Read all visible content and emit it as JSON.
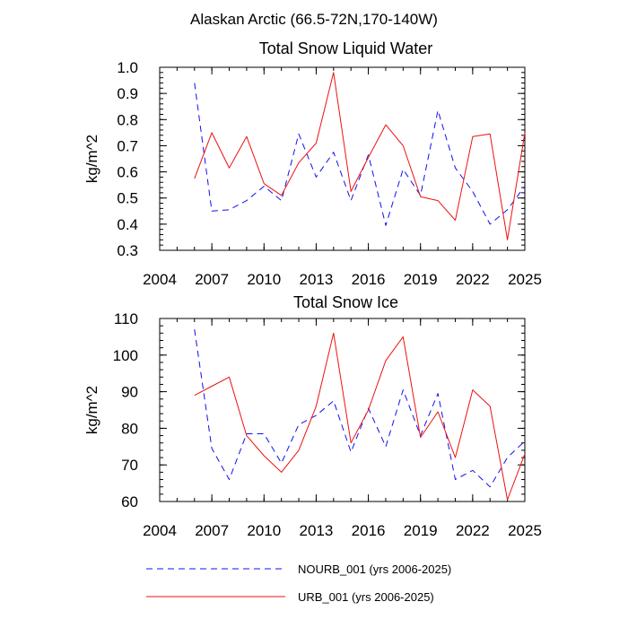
{
  "figure_title": "Alaskan Arctic (66.5-72N,170-140W)",
  "legend": {
    "items": [
      {
        "label": "NOURB_001 (yrs 2006-2025)",
        "color": "#1010ee",
        "style": "dashed"
      },
      {
        "label": "URB_001 (yrs 2006-2025)",
        "color": "#ee1010",
        "style": "solid"
      }
    ]
  },
  "chart_data": [
    {
      "type": "line",
      "title": "Total Snow Liquid Water",
      "xlabel": "",
      "ylabel": "kg/m^2",
      "xlim": [
        2004,
        2025
      ],
      "ylim": [
        0.3,
        1.0
      ],
      "xticks": [
        2004,
        2007,
        2010,
        2013,
        2016,
        2019,
        2022,
        2025
      ],
      "xtick_labels": [
        "2004",
        "2007",
        "2010",
        "2013",
        "2016",
        "2019",
        "2022",
        "2025"
      ],
      "yticks": [
        0.3,
        0.4,
        0.5,
        0.6,
        0.7,
        0.8,
        0.9,
        1.0
      ],
      "ytick_labels": [
        "0.3",
        "0.4",
        "0.5",
        "0.6",
        "0.7",
        "0.8",
        "0.9",
        "1.0"
      ],
      "x": [
        2006,
        2007,
        2008,
        2009,
        2010,
        2011,
        2012,
        2013,
        2014,
        2015,
        2016,
        2017,
        2018,
        2019,
        2020,
        2021,
        2022,
        2023,
        2024,
        2025
      ],
      "series": [
        {
          "name": "NOURB_001 (yrs 2006-2025)",
          "color": "#1010ee",
          "style": "dashed",
          "values": [
            0.94,
            0.45,
            0.455,
            0.49,
            0.545,
            0.49,
            0.745,
            0.58,
            0.675,
            0.49,
            0.665,
            0.395,
            0.61,
            0.51,
            0.835,
            0.615,
            0.525,
            0.4,
            0.455,
            0.545
          ]
        },
        {
          "name": "URB_001 (yrs 2006-2025)",
          "color": "#ee1010",
          "style": "solid",
          "values": [
            0.575,
            0.75,
            0.615,
            0.735,
            0.555,
            0.51,
            0.635,
            0.71,
            0.98,
            0.525,
            0.655,
            0.78,
            0.7,
            0.505,
            0.49,
            0.415,
            0.735,
            0.745,
            0.34,
            0.75
          ]
        }
      ]
    },
    {
      "type": "line",
      "title": "Total Snow Ice",
      "xlabel": "",
      "ylabel": "kg/m^2",
      "xlim": [
        2004,
        2025
      ],
      "ylim": [
        60,
        110
      ],
      "xticks": [
        2004,
        2007,
        2010,
        2013,
        2016,
        2019,
        2022,
        2025
      ],
      "xtick_labels": [
        "2004",
        "2007",
        "2010",
        "2013",
        "2016",
        "2019",
        "2022",
        "2025"
      ],
      "yticks": [
        60,
        70,
        80,
        90,
        100,
        110
      ],
      "ytick_labels": [
        "60",
        "70",
        "80",
        "90",
        "100",
        "110"
      ],
      "x": [
        2006,
        2007,
        2008,
        2009,
        2010,
        2011,
        2012,
        2013,
        2014,
        2015,
        2016,
        2017,
        2018,
        2019,
        2020,
        2021,
        2022,
        2023,
        2024,
        2025
      ],
      "series": [
        {
          "name": "NOURB_001 (yrs 2006-2025)",
          "color": "#1010ee",
          "style": "dashed",
          "values": [
            107,
            74.5,
            66,
            78.5,
            78.5,
            70.5,
            81,
            83.5,
            87.5,
            73.5,
            85.5,
            75,
            90.5,
            78,
            89.5,
            66,
            68.5,
            64,
            72,
            76.5
          ]
        },
        {
          "name": "URB_001 (yrs 2006-2025)",
          "color": "#ee1010",
          "style": "solid",
          "values": [
            89,
            91.5,
            94,
            78,
            72.5,
            68,
            74,
            86,
            106,
            76,
            85,
            98.5,
            105,
            77.5,
            84.5,
            72,
            90.5,
            86,
            60.5,
            73
          ]
        }
      ]
    }
  ]
}
